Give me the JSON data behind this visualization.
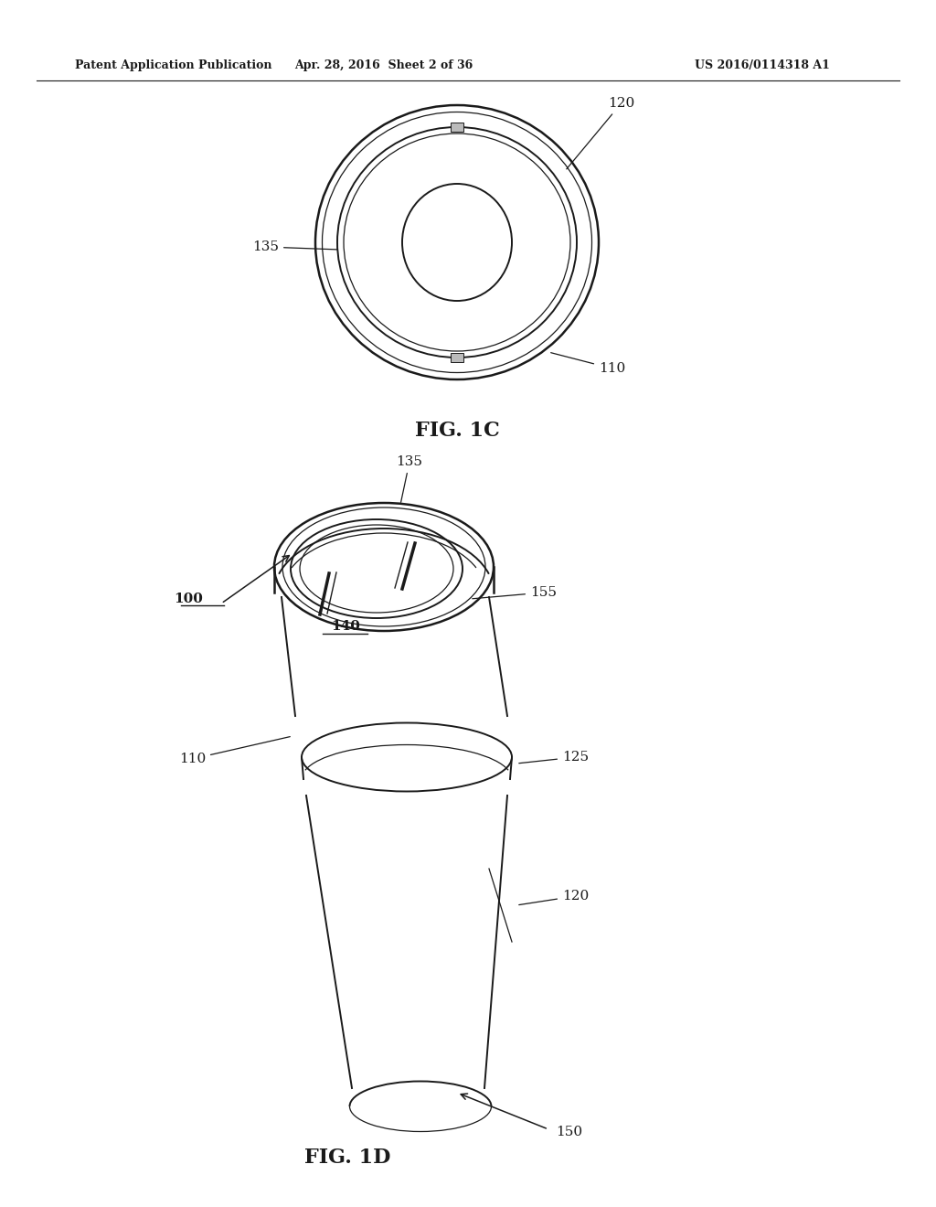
{
  "bg_color": "#ffffff",
  "line_color": "#1a1a1a",
  "header_left": "Patent Application Publication",
  "header_mid": "Apr. 28, 2016  Sheet 2 of 36",
  "header_right": "US 2016/0114318 A1",
  "fig1c_label": "FIG. 1C",
  "fig1d_label": "FIG. 1D"
}
